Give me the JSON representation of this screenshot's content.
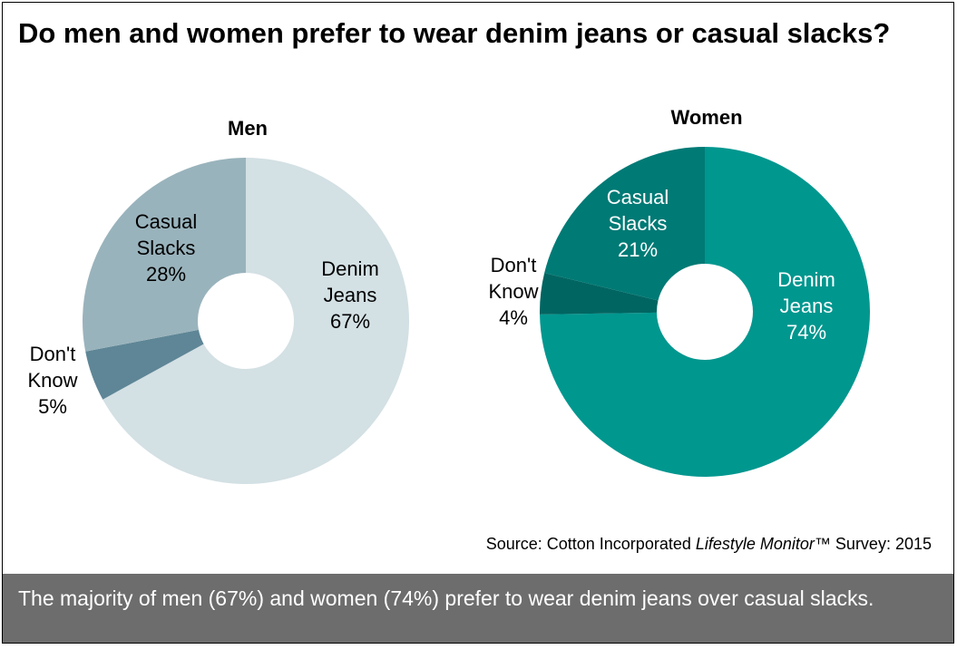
{
  "title": "Do men and women prefer to wear denim jeans or casual slacks?",
  "source": {
    "prefix": "Source: Cotton Incorporated ",
    "italic": "Lifestyle Monitor",
    "suffix": "™ Survey: 2015"
  },
  "footer": {
    "text": "The majority of men (67%) and women (74%) prefer to wear denim jeans over casual slacks."
  },
  "chart_data": [
    {
      "type": "pie",
      "title": "Men",
      "labels": [
        "Denim Jeans",
        "Don't Know",
        "Casual Slacks"
      ],
      "values": [
        67,
        5,
        28
      ],
      "colors": [
        "#d3e0e4",
        "#5e8696",
        "#99b3bc"
      ],
      "label_colors": [
        "#000000",
        "#000000",
        "#000000"
      ]
    },
    {
      "type": "pie",
      "title": "Women",
      "labels": [
        "Denim Jeans",
        "Don't Know",
        "Casual Slacks"
      ],
      "values": [
        74,
        4,
        21
      ],
      "colors": [
        "#00978f",
        "#006561",
        "#007a75"
      ],
      "label_colors": [
        "#ffffff",
        "#000000",
        "#ffffff"
      ]
    }
  ]
}
